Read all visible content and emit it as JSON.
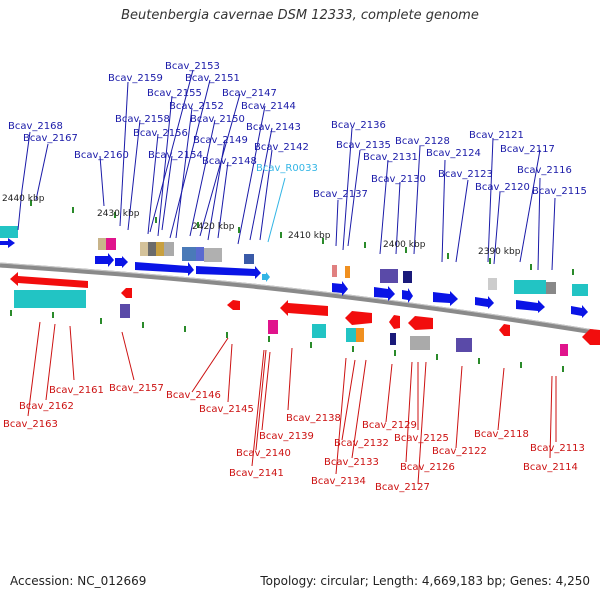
{
  "title": "Beutenbergia cavernae DSM 12333, complete genome",
  "footer": {
    "accession": "Accession: NC_012669",
    "topology": "Topology: circular; Length: 4,669,183 bp; Genes: 4,250"
  },
  "colors": {
    "forward_gene": "#0a14e6",
    "reverse_gene": "#f20d0d",
    "label_blue": "#1a1aa8",
    "label_red": "#cc1111",
    "rna_label": "#33b5e5",
    "backbone": "#888888",
    "tick": "#2a8a2a"
  },
  "kbp_marks": [
    "2440 kbp",
    "2430 kbp",
    "2420 kbp",
    "2410 kbp",
    "2400 kbp",
    "2390 kbp"
  ],
  "top_labels": [
    "Bcav_2168",
    "Bcav_2167",
    "Bcav_2159",
    "Bcav_2153",
    "Bcav_2155",
    "Bcav_2151",
    "Bcav_2152",
    "Bcav_2147",
    "Bcav_2158",
    "Bcav_2156",
    "Bcav_2150",
    "Bcav_2144",
    "Bcav_2143",
    "Bcav_2149",
    "Bcav_2160",
    "Bcav_2154",
    "Bcav_2148",
    "Bcav_2142",
    "Bcav_R0033",
    "Bcav_2136",
    "Bcav_2135",
    "Bcav_2128",
    "Bcav_2121",
    "Bcav_2131",
    "Bcav_2124",
    "Bcav_2117",
    "Bcav_2123",
    "Bcav_2116",
    "Bcav_2130",
    "Bcav_2120",
    "Bcav_2115",
    "Bcav_2137"
  ],
  "bottom_labels": [
    "Bcav_2161",
    "Bcav_2157",
    "Bcav_2162",
    "Bcav_2146",
    "Bcav_2163",
    "Bcav_2145",
    "Bcav_2138",
    "Bcav_2129",
    "Bcav_2139",
    "Bcav_2125",
    "Bcav_2118",
    "Bcav_2132",
    "Bcav_2122",
    "Bcav_2140",
    "Bcav_2113",
    "Bcav_2133",
    "Bcav_2126",
    "Bcav_2114",
    "Bcav_2141",
    "Bcav_2134",
    "Bcav_2127"
  ]
}
